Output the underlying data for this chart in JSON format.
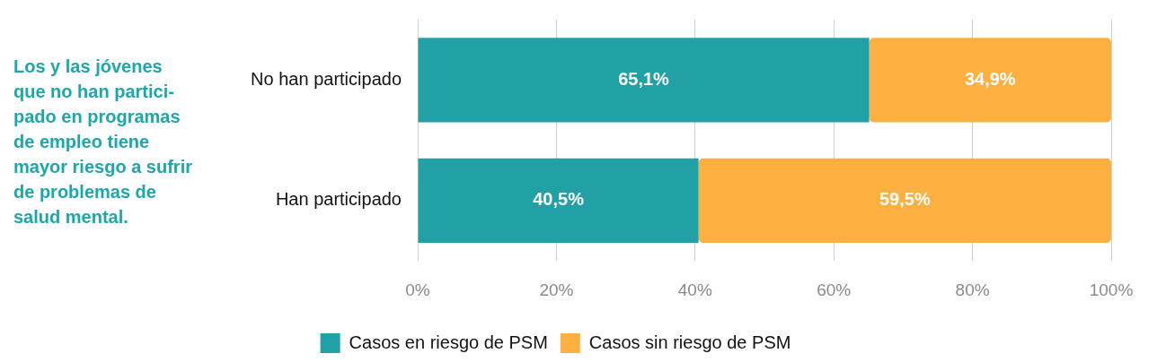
{
  "chart_data": {
    "type": "bar",
    "orientation": "horizontal",
    "stacked": true,
    "categories": [
      "No han participado",
      "Han participado"
    ],
    "series": [
      {
        "name": "Casos en riesgo de PSM",
        "color": "#21a0a6",
        "values": [
          65.1,
          40.5
        ],
        "value_labels": [
          "65,1%",
          "40,5%"
        ]
      },
      {
        "name": "Casos sin riesgo de PSM",
        "color": "#fbb040",
        "values": [
          34.9,
          59.5
        ],
        "value_labels": [
          "34,9%",
          "59,5%"
        ]
      }
    ],
    "xlim": [
      0,
      100
    ],
    "xticks": [
      {
        "value": 0,
        "label": "0%"
      },
      {
        "value": 20,
        "label": "20%"
      },
      {
        "value": 40,
        "label": "40%"
      },
      {
        "value": 60,
        "label": "60%"
      },
      {
        "value": 80,
        "label": "80%"
      },
      {
        "value": 100,
        "label": "100%"
      }
    ],
    "grid": "x",
    "legend": "bottom",
    "annotations": [
      "Los y las jóvenes\nque no han partici-\npado en programas\nde empleo tiene\nmayor riesgo a sufrir\nde problemas de\nsalud mental."
    ]
  }
}
